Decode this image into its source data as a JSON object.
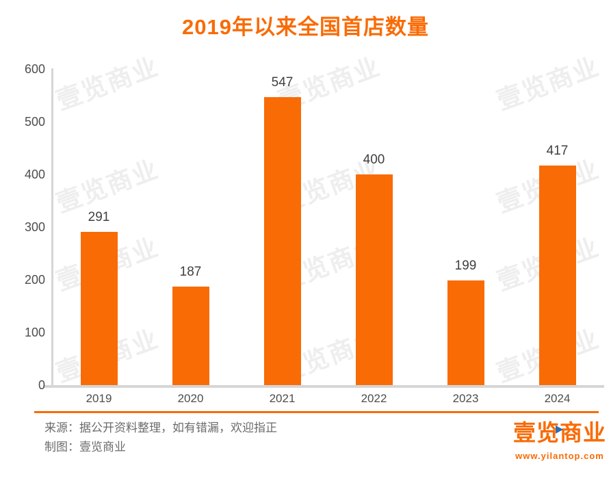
{
  "title": "2019年以来全国首店数量",
  "colors": {
    "accent_orange": "#f96b05",
    "axis_line": "#d6d6d6",
    "tick_text": "#4d4d4d",
    "value_label_text": "#3f3f3f",
    "footer_text": "#6b6b6b",
    "logo_blue": "#2f6bb0",
    "watermark_gray": "#8a8a8a"
  },
  "chart_data": {
    "type": "bar",
    "title": "2019年以来全国首店数量",
    "categories": [
      "2019",
      "2020",
      "2021",
      "2022",
      "2023",
      "2024"
    ],
    "values": [
      291,
      187,
      547,
      400,
      199,
      417
    ],
    "xlabel": "",
    "ylabel": "",
    "ylim": [
      0,
      600
    ],
    "yticks": [
      0,
      100,
      200,
      300,
      400,
      500,
      600
    ],
    "grid": false,
    "legend": false,
    "bar_color": "#f96b05",
    "data_labels": true
  },
  "watermark": {
    "text": "壹览商业"
  },
  "footer": {
    "source_line": "来源：据公开资料整理，如有错漏，欢迎指正",
    "credit_line": "制图：壹览商业"
  },
  "logo": {
    "name": "壹览商业",
    "url": "www.yilantop.com"
  }
}
